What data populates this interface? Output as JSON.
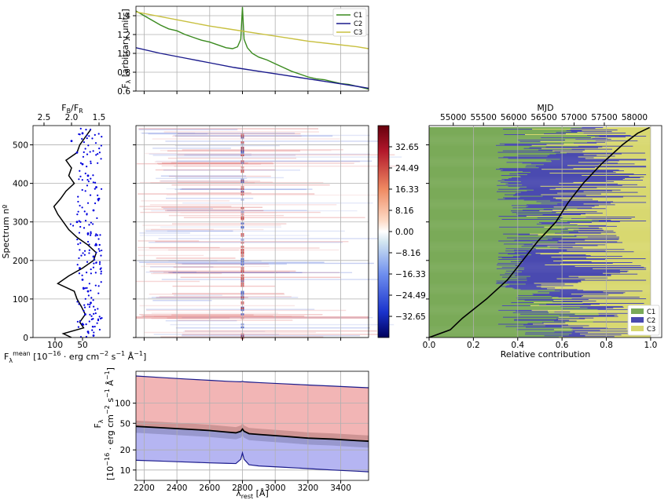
{
  "chart_data": [
    {
      "type": "line",
      "panel": "top",
      "ylabel": "F_λ [arbitrary units]",
      "ylim": [
        0.6,
        1.5
      ],
      "xlim": [
        2150,
        3570
      ],
      "yticks": [
        "0.6",
        "0.8",
        "1.0",
        "1.2",
        "1.4"
      ],
      "legend_position": "upper-right",
      "series": [
        {
          "name": "C1",
          "color": "#3a8a1e",
          "x": [
            2150,
            2200,
            2250,
            2300,
            2350,
            2400,
            2450,
            2500,
            2550,
            2600,
            2650,
            2700,
            2740,
            2770,
            2790,
            2800,
            2810,
            2830,
            2860,
            2900,
            2950,
            3000,
            3050,
            3100,
            3150,
            3200,
            3250,
            3300,
            3350,
            3400,
            3450,
            3500,
            3570
          ],
          "y": [
            1.45,
            1.4,
            1.35,
            1.3,
            1.26,
            1.24,
            1.2,
            1.17,
            1.14,
            1.12,
            1.09,
            1.06,
            1.05,
            1.07,
            1.15,
            1.49,
            1.15,
            1.06,
            1.0,
            0.96,
            0.93,
            0.89,
            0.85,
            0.81,
            0.78,
            0.75,
            0.73,
            0.72,
            0.7,
            0.68,
            0.67,
            0.65,
            0.62
          ]
        },
        {
          "name": "C2",
          "color": "#1a1a8c",
          "x": [
            2150,
            2300,
            2450,
            2600,
            2750,
            2900,
            3050,
            3200,
            3350,
            3500,
            3570
          ],
          "y": [
            1.06,
            1.0,
            0.95,
            0.9,
            0.85,
            0.81,
            0.77,
            0.73,
            0.69,
            0.65,
            0.63
          ]
        },
        {
          "name": "C3",
          "color": "#c8c040",
          "x": [
            2150,
            2300,
            2450,
            2600,
            2750,
            2900,
            3050,
            3200,
            3350,
            3500,
            3570
          ],
          "y": [
            1.44,
            1.39,
            1.34,
            1.29,
            1.25,
            1.21,
            1.17,
            1.13,
            1.1,
            1.07,
            1.05
          ]
        }
      ]
    },
    {
      "type": "scatter",
      "panel": "left",
      "ylabel": "Spectrum nº",
      "ylim": [
        0,
        550
      ],
      "yticks": [
        "0",
        "100",
        "200",
        "300",
        "400",
        "500"
      ],
      "top_xlabel": "F_B/F_R",
      "top_xticks": [
        "2.5",
        "2.0",
        "1.5"
      ],
      "bottom_xlabel": "F_λ^mean [10^-16 · erg cm^-2 s^-1 Å^-1]",
      "bottom_xticks": [
        "100",
        "50"
      ],
      "series": [
        {
          "name": "",
          "color": "#000000",
          "y": [
            0,
            10,
            25,
            40,
            60,
            80,
            100,
            120,
            140,
            160,
            180,
            200,
            220,
            240,
            260,
            280,
            300,
            320,
            340,
            360,
            380,
            400,
            420,
            440,
            460,
            480,
            500,
            520,
            540
          ],
          "x": [
            70,
            85,
            48,
            55,
            45,
            52,
            60,
            65,
            95,
            75,
            50,
            30,
            25,
            40,
            60,
            75,
            85,
            95,
            102,
            90,
            80,
            65,
            75,
            70,
            80,
            60,
            55,
            45,
            35
          ]
        },
        {
          "name": "",
          "color": "#0000dd",
          "y": [
            5,
            15,
            35,
            60,
            90,
            120,
            150,
            180,
            210,
            240,
            270,
            300,
            330,
            360,
            390,
            420,
            450,
            480,
            510,
            530
          ],
          "x": [
            1.6,
            1.7,
            1.8,
            1.75,
            1.65,
            1.7,
            1.8,
            1.85,
            1.6,
            1.55,
            1.7,
            1.9,
            1.6,
            1.5,
            1.55,
            1.7,
            1.8,
            1.9,
            2.0,
            1.8
          ]
        }
      ]
    },
    {
      "type": "heatmap",
      "panel": "center",
      "colorbar_ticks": [
        "32.65",
        "24.49",
        "16.33",
        "8.16",
        "0.00",
        "−8.16",
        "−16.33",
        "−24.49",
        "−32.65"
      ],
      "colormap": "seismic",
      "vmin": -40.8,
      "vmax": 40.8
    },
    {
      "type": "bar",
      "panel": "right",
      "orientation": "horizontal-stacked",
      "xlabel": "Relative contribution",
      "xlim": [
        0,
        1.05
      ],
      "xticks": [
        "0.0",
        "0.2",
        "0.4",
        "0.6",
        "0.8",
        "1.0"
      ],
      "top_xlabel": "MJD",
      "top_xticks": [
        "55000",
        "55500",
        "56000",
        "56500",
        "57000",
        "57500",
        "58000"
      ],
      "legend_position": "lower-right",
      "series": [
        {
          "name": "C1",
          "color": "#7aaa58"
        },
        {
          "name": "C2",
          "color": "#4a4ab0"
        },
        {
          "name": "C3",
          "color": "#d8d870"
        }
      ],
      "mjd_curve": {
        "color": "#000000",
        "spectrum": [
          0,
          20,
          50,
          100,
          150,
          200,
          250,
          300,
          350,
          400,
          450,
          500,
          530,
          545
        ],
        "mjd": [
          54600,
          54950,
          55150,
          55550,
          55900,
          56150,
          56400,
          56700,
          56900,
          57150,
          57450,
          57800,
          58050,
          58250
        ]
      }
    },
    {
      "type": "area",
      "panel": "bottom",
      "ylabel": "F_λ [10^-16 · erg cm^-2 s^-1 Å^-1]",
      "xlabel": "λ_rest [Å]",
      "yscale": "log",
      "ylim": [
        7,
        300
      ],
      "xlim": [
        2150,
        3570
      ],
      "xticks": [
        "2200",
        "2400",
        "2600",
        "2800",
        "3000",
        "3200",
        "3400"
      ],
      "yticks": [
        "10",
        "20",
        "50",
        "100"
      ],
      "x": [
        2150,
        2300,
        2450,
        2600,
        2700,
        2760,
        2790,
        2800,
        2810,
        2840,
        2900,
        3050,
        3200,
        3350,
        3500,
        3570
      ],
      "series": [
        {
          "name": "",
          "color": "#1a1a8c",
          "y": [
            255,
            242,
            230,
            220,
            213,
            210,
            209,
            212,
            209,
            207,
            203,
            195,
            187,
            180,
            173,
            170
          ]
        },
        {
          "name": "",
          "color": "#000000",
          "y": [
            45,
            43,
            41,
            39,
            37,
            36,
            38,
            41,
            38,
            35,
            34,
            32,
            30,
            29,
            27.5,
            27
          ]
        },
        {
          "name": "",
          "color": "#1a1a8c",
          "y": [
            14,
            13.6,
            13.2,
            12.8,
            12.6,
            12.5,
            14.5,
            18,
            14.5,
            12,
            11.5,
            11,
            10.5,
            10,
            9.6,
            9.4
          ]
        }
      ]
    }
  ]
}
